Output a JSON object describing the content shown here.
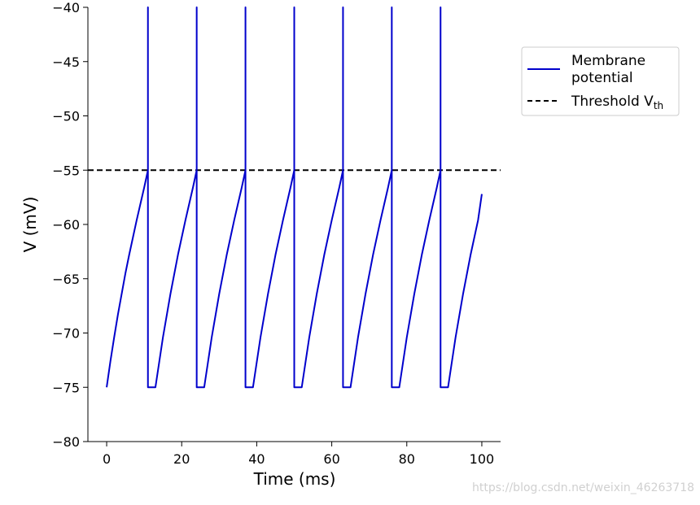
{
  "chart_data": {
    "type": "line",
    "xlabel": "Time (ms)",
    "ylabel": "V (mV)",
    "xlim": [
      -5,
      105
    ],
    "ylim": [
      -80,
      -40
    ],
    "x_ticks": [
      0,
      20,
      40,
      60,
      80,
      100
    ],
    "y_ticks": [
      -80,
      -75,
      -70,
      -65,
      -60,
      -55,
      -50,
      -45,
      -40
    ],
    "spines": "left-bottom",
    "legend_position": "outside-top-right",
    "series": [
      {
        "name_lines": [
          "Membrane",
          "potential"
        ],
        "color": "#0000cc",
        "style": "solid",
        "model": {
          "v_reset": -75,
          "v_threshold": -55,
          "spike_peak": -40,
          "refractory_ms": 2,
          "segments": [
            {
              "x": [
                0,
                1,
                2,
                3,
                4,
                5,
                6,
                7,
                8,
                9,
                10,
                11
              ],
              "y": [
                -75,
                -72.6,
                -70.4,
                -68.3,
                -66.4,
                -64.5,
                -62.8,
                -61.2,
                -59.6,
                -58.1,
                -56.6,
                -55
              ]
            },
            {
              "x": [
                13,
                15,
                17,
                19,
                21,
                23,
                24
              ],
              "y": [
                -75,
                -70.4,
                -66.4,
                -62.8,
                -59.6,
                -56.6,
                -55
              ]
            },
            {
              "x": [
                26,
                28,
                30,
                32,
                34,
                36,
                37
              ],
              "y": [
                -75,
                -70.4,
                -66.4,
                -62.8,
                -59.6,
                -56.6,
                -55
              ]
            },
            {
              "x": [
                39,
                41,
                43,
                45,
                47,
                49,
                50
              ],
              "y": [
                -75,
                -70.4,
                -66.4,
                -62.8,
                -59.6,
                -56.6,
                -55
              ]
            },
            {
              "x": [
                52,
                54,
                56,
                58,
                60,
                62,
                63
              ],
              "y": [
                -75,
                -70.4,
                -66.4,
                -62.8,
                -59.6,
                -56.6,
                -55
              ]
            },
            {
              "x": [
                65,
                67,
                69,
                71,
                73,
                75,
                76
              ],
              "y": [
                -75,
                -70.4,
                -66.4,
                -62.8,
                -59.6,
                -56.6,
                -55
              ]
            },
            {
              "x": [
                78,
                80,
                82,
                84,
                86,
                88,
                89
              ],
              "y": [
                -75,
                -70.4,
                -66.4,
                -62.8,
                -59.6,
                -56.6,
                -55
              ]
            },
            {
              "x": [
                91,
                93,
                95,
                97,
                99,
                100
              ],
              "y": [
                -75,
                -70.4,
                -66.4,
                -62.8,
                -59.6,
                -57.2
              ]
            }
          ],
          "spike_times": [
            11,
            24,
            37,
            50,
            63,
            76,
            89
          ]
        }
      },
      {
        "name": "Threshold V",
        "name_subscript": "th",
        "color": "#000000",
        "style": "dashed",
        "y_constant": -55
      }
    ]
  },
  "watermark": "https://blog.csdn.net/weixin_46263718"
}
